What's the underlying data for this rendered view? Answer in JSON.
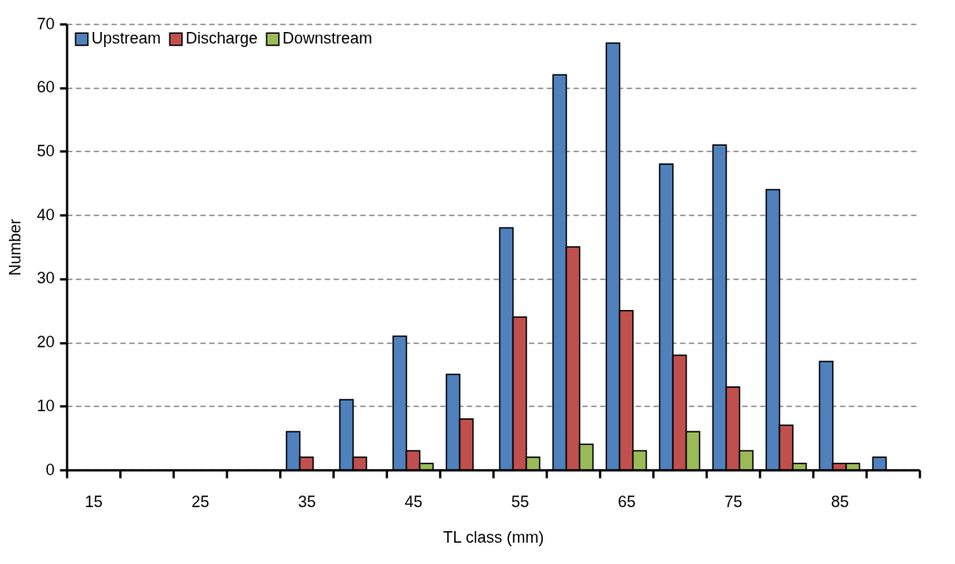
{
  "chart_data": {
    "type": "bar",
    "xlabel": "TL class (mm)",
    "ylabel": "Number",
    "categories": [
      "15",
      null,
      "25",
      null,
      "35",
      null,
      "45",
      null,
      "55",
      null,
      "65",
      null,
      "75",
      null,
      "85",
      null
    ],
    "series": [
      {
        "name": "Upstream",
        "color": "#4f81bd",
        "values": [
          null,
          null,
          null,
          null,
          6,
          11,
          21,
          15,
          38,
          62,
          67,
          48,
          51,
          44,
          17,
          2
        ]
      },
      {
        "name": "Discharge",
        "color": "#c0504d",
        "values": [
          null,
          null,
          null,
          null,
          2,
          2,
          3,
          8,
          24,
          35,
          25,
          18,
          13,
          7,
          1,
          null
        ]
      },
      {
        "name": "Downstream",
        "color": "#9bbb59",
        "values": [
          null,
          null,
          null,
          null,
          null,
          null,
          1,
          null,
          2,
          4,
          3,
          6,
          3,
          1,
          1,
          null
        ]
      }
    ],
    "ylim": [
      0,
      70
    ],
    "yticks": [
      0,
      10,
      20,
      30,
      40,
      50,
      60,
      70
    ],
    "grid": "y",
    "legend": "top left"
  }
}
